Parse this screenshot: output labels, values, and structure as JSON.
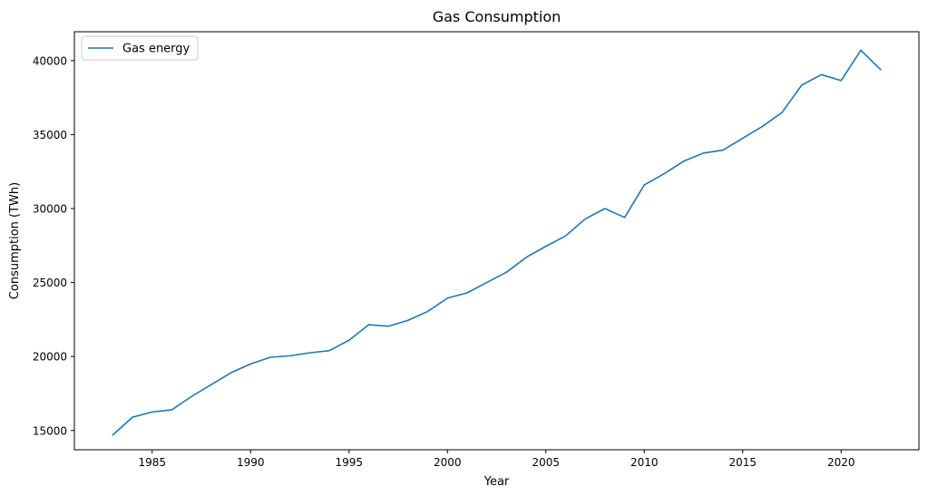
{
  "chart_data": {
    "type": "line",
    "title": "Gas Consumption",
    "xlabel": "Year",
    "ylabel": "Consumption (TWh)",
    "xlim": [
      1981.05,
      2023.95
    ],
    "ylim": [
      13700,
      41950
    ],
    "xticks": [
      1985,
      1990,
      1995,
      2000,
      2005,
      2010,
      2015,
      2020
    ],
    "yticks": [
      15000,
      20000,
      25000,
      30000,
      35000,
      40000
    ],
    "grid": false,
    "legend_position": "top-left",
    "series": [
      {
        "name": "Gas energy",
        "color": "#1f77b4",
        "x": [
          1983,
          1984,
          1985,
          1986,
          1987,
          1988,
          1989,
          1990,
          1991,
          1992,
          1993,
          1994,
          1995,
          1996,
          1997,
          1998,
          1999,
          2000,
          2001,
          2002,
          2003,
          2004,
          2005,
          2006,
          2007,
          2008,
          2009,
          2010,
          2011,
          2012,
          2013,
          2014,
          2015,
          2016,
          2017,
          2018,
          2019,
          2020,
          2021,
          2022
        ],
        "y": [
          14700,
          15900,
          16250,
          16400,
          17300,
          18100,
          18900,
          19500,
          19950,
          20050,
          20250,
          20400,
          21100,
          22150,
          22050,
          22450,
          23050,
          23950,
          24300,
          25000,
          25700,
          26700,
          27450,
          28150,
          29300,
          30000,
          29400,
          31600,
          32350,
          33200,
          33750,
          33950,
          34750,
          35550,
          36500,
          38350,
          39050,
          38650,
          40700,
          39400
        ]
      }
    ]
  }
}
